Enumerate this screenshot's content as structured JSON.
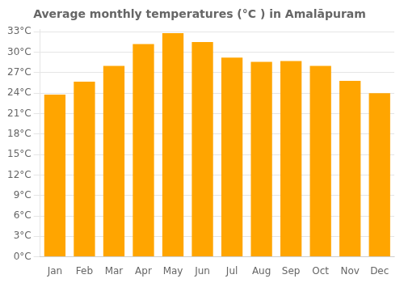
{
  "chart_data": {
    "type": "bar",
    "title": "Average monthly temperatures (°C ) in Amalāpuram",
    "categories": [
      "Jan",
      "Feb",
      "Mar",
      "Apr",
      "May",
      "Jun",
      "Jul",
      "Aug",
      "Sep",
      "Oct",
      "Nov",
      "Dec"
    ],
    "values": [
      23.8,
      25.7,
      28.0,
      31.2,
      32.8,
      31.5,
      29.2,
      28.6,
      28.7,
      28.0,
      25.8,
      24.0
    ],
    "color": "#FFA500",
    "ylim": [
      0,
      33.3
    ],
    "yticks": [
      {
        "value": 0,
        "label": "0°C"
      },
      {
        "value": 3,
        "label": "3°C"
      },
      {
        "value": 6,
        "label": "6°C"
      },
      {
        "value": 9,
        "label": "9°C"
      },
      {
        "value": 12,
        "label": "12°C"
      },
      {
        "value": 15,
        "label": "15°C"
      },
      {
        "value": 18,
        "label": "18°C"
      },
      {
        "value": 21,
        "label": "21°C"
      },
      {
        "value": 24,
        "label": "24°C"
      },
      {
        "value": 27,
        "label": "27°C"
      },
      {
        "value": 30,
        "label": "30°C"
      },
      {
        "value": 33,
        "label": "33°C"
      }
    ],
    "grid": true
  }
}
